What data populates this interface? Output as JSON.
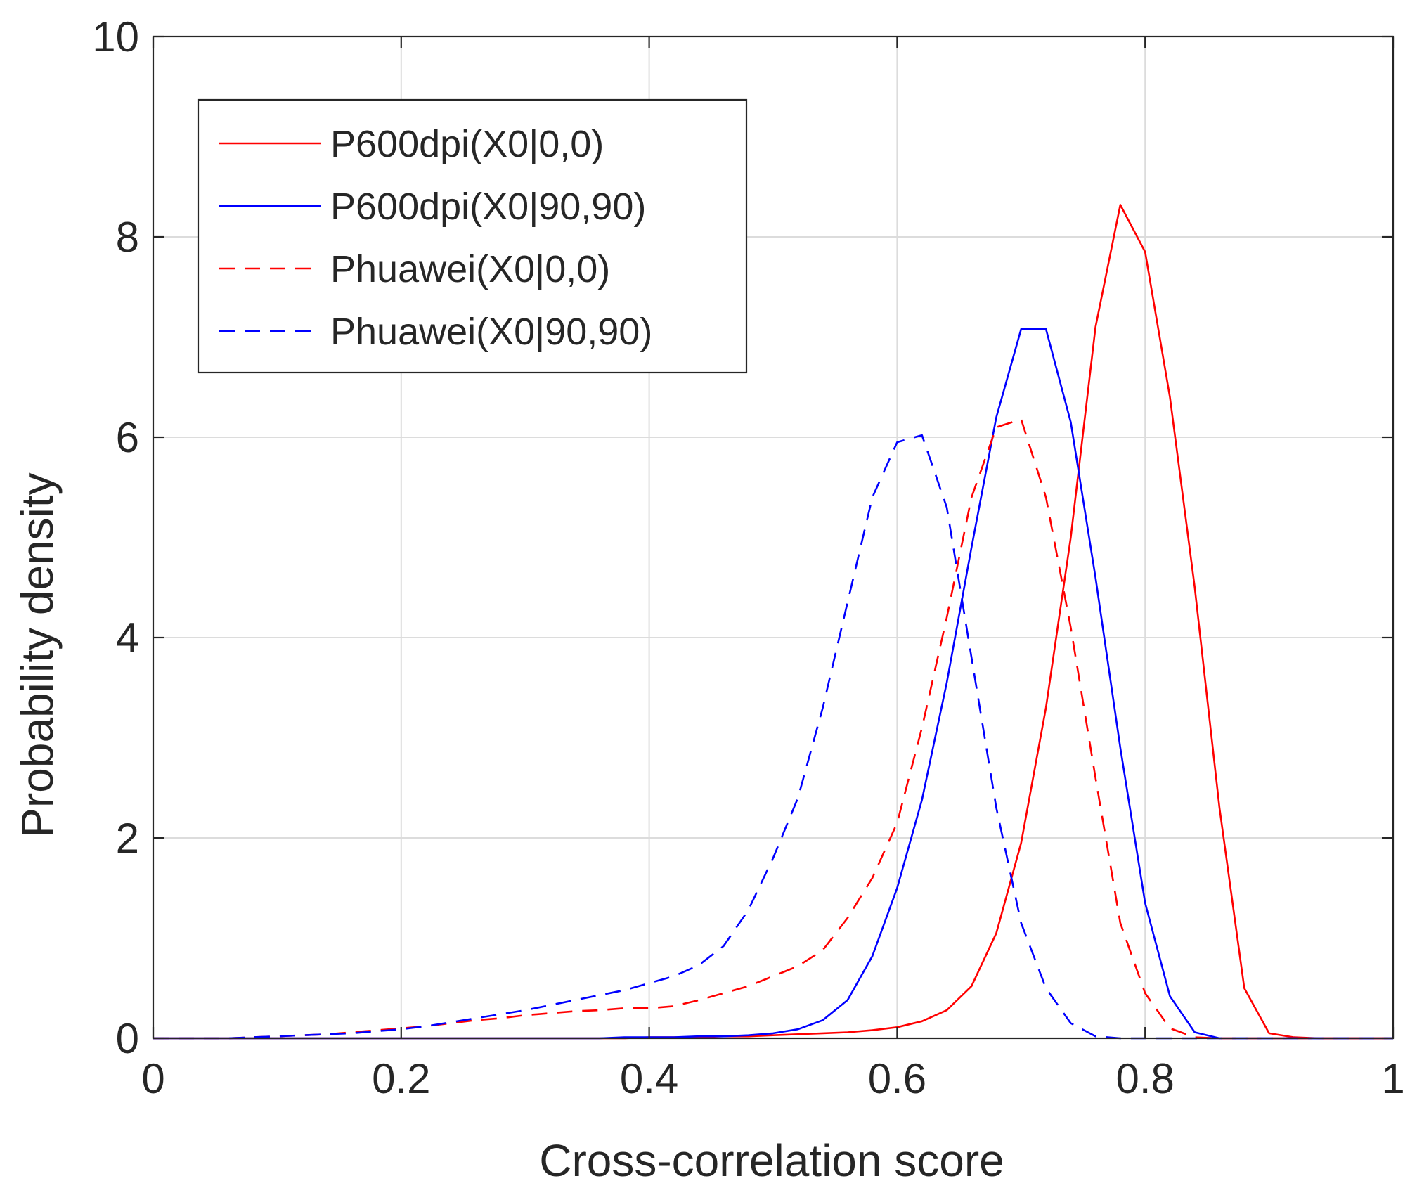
{
  "chart_data": {
    "type": "line",
    "title": "",
    "xlabel": "Cross-correlation score",
    "ylabel": "Probability density",
    "xlim": [
      0,
      1
    ],
    "ylim": [
      0,
      10
    ],
    "xticks": [
      0,
      0.2,
      0.4,
      0.6,
      0.8,
      1
    ],
    "xtick_labels": [
      "0",
      "0.2",
      "0.4",
      "0.6",
      "0.8",
      "1"
    ],
    "yticks": [
      0,
      2,
      4,
      6,
      8,
      10
    ],
    "ytick_labels": [
      "0",
      "2",
      "4",
      "6",
      "8",
      "10"
    ],
    "grid": true,
    "legend_position": "top-left",
    "x": [
      0,
      0.02,
      0.04,
      0.06,
      0.08,
      0.1,
      0.12,
      0.14,
      0.16,
      0.18,
      0.2,
      0.22,
      0.24,
      0.26,
      0.28,
      0.3,
      0.32,
      0.34,
      0.36,
      0.38,
      0.4,
      0.42,
      0.44,
      0.46,
      0.48,
      0.5,
      0.52,
      0.54,
      0.56,
      0.58,
      0.6,
      0.62,
      0.64,
      0.66,
      0.68,
      0.7,
      0.72,
      0.74,
      0.76,
      0.78,
      0.8,
      0.82,
      0.84,
      0.86,
      0.88,
      0.9,
      0.92,
      0.94,
      0.96,
      0.98,
      1.0
    ],
    "series": [
      {
        "name": "P600dpi(X0|0,0)",
        "color": "#ff0000",
        "dash": "solid",
        "values": [
          0,
          0,
          0,
          0,
          0,
          0,
          0,
          0,
          0,
          0,
          0,
          0,
          0,
          0,
          0,
          0,
          0,
          0,
          0,
          0,
          0.01,
          0.01,
          0.01,
          0.02,
          0.02,
          0.03,
          0.04,
          0.05,
          0.06,
          0.08,
          0.11,
          0.17,
          0.28,
          0.52,
          1.05,
          1.95,
          3.3,
          5.0,
          7.1,
          8.32,
          7.85,
          6.4,
          4.5,
          2.3,
          0.5,
          0.05,
          0.01,
          0,
          0,
          0,
          0
        ]
      },
      {
        "name": "P600dpi(X0|90,90)",
        "color": "#0000ff",
        "dash": "solid",
        "values": [
          0,
          0,
          0,
          0,
          0,
          0,
          0,
          0,
          0,
          0,
          0,
          0,
          0,
          0,
          0,
          0,
          0,
          0,
          0,
          0.01,
          0.01,
          0.01,
          0.02,
          0.02,
          0.03,
          0.05,
          0.09,
          0.18,
          0.38,
          0.82,
          1.5,
          2.38,
          3.55,
          4.9,
          6.2,
          7.08,
          7.08,
          6.15,
          4.6,
          2.9,
          1.35,
          0.42,
          0.06,
          0,
          0,
          0,
          0,
          0,
          0,
          0,
          0
        ]
      },
      {
        "name": "Phuawei(X0|0,0)",
        "color": "#ff0000",
        "dash": "dashed",
        "values": [
          0,
          0,
          0,
          0,
          0.01,
          0.02,
          0.03,
          0.04,
          0.06,
          0.08,
          0.1,
          0.12,
          0.15,
          0.18,
          0.2,
          0.23,
          0.25,
          0.27,
          0.28,
          0.3,
          0.3,
          0.32,
          0.38,
          0.45,
          0.52,
          0.62,
          0.72,
          0.88,
          1.2,
          1.6,
          2.15,
          3.1,
          4.2,
          5.4,
          6.1,
          6.18,
          5.4,
          4.1,
          2.6,
          1.15,
          0.45,
          0.1,
          0.01,
          0,
          0,
          0,
          0,
          0,
          0,
          0,
          0
        ]
      },
      {
        "name": "Phuawei(X0|90,90)",
        "color": "#0000ff",
        "dash": "dashed",
        "values": [
          0,
          0,
          0,
          0,
          0.01,
          0.02,
          0.03,
          0.04,
          0.05,
          0.07,
          0.09,
          0.12,
          0.16,
          0.2,
          0.24,
          0.28,
          0.33,
          0.38,
          0.43,
          0.48,
          0.55,
          0.62,
          0.73,
          0.92,
          1.28,
          1.8,
          2.4,
          3.3,
          4.35,
          5.4,
          5.95,
          6.02,
          5.3,
          3.8,
          2.3,
          1.15,
          0.5,
          0.15,
          0.02,
          0,
          0,
          0,
          0,
          0,
          0,
          0,
          0,
          0,
          0,
          0,
          0
        ]
      }
    ]
  }
}
